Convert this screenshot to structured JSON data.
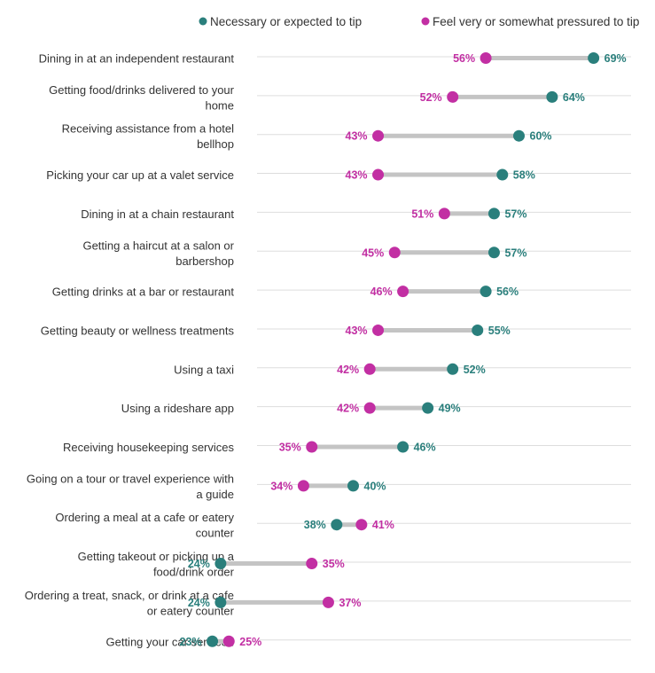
{
  "chart_data": {
    "type": "dumbbell",
    "series": [
      {
        "name": "Necessary or expected to tip",
        "color": "#2a7f7c",
        "values": [
          69,
          64,
          60,
          58,
          57,
          57,
          56,
          55,
          52,
          49,
          46,
          40,
          38,
          24,
          24,
          23
        ]
      },
      {
        "name": "Feel very or somewhat pressured to tip",
        "color": "#c22fa3",
        "values": [
          56,
          52,
          43,
          43,
          51,
          45,
          46,
          43,
          42,
          42,
          35,
          34,
          41,
          35,
          37,
          25
        ]
      }
    ],
    "categories": [
      [
        "Dining in at an independent restaurant"
      ],
      [
        "Getting food/drinks delivered to your",
        "home"
      ],
      [
        "Receiving assistance from a hotel",
        "bellhop"
      ],
      [
        "Picking your car up at a valet service"
      ],
      [
        "Dining in at a chain restaurant"
      ],
      [
        "Getting a haircut at a salon or",
        "barbershop"
      ],
      [
        "Getting drinks at a bar or restaurant"
      ],
      [
        "Getting beauty or wellness treatments"
      ],
      [
        "Using a taxi"
      ],
      [
        "Using a rideshare app"
      ],
      [
        "Receiving housekeeping services"
      ],
      [
        "Going on a tour or travel experience with",
        "a guide"
      ],
      [
        "Ordering a meal at a cafe or eatery",
        "counter"
      ],
      [
        "Getting takeout or picking up a",
        "food/drink order"
      ],
      [
        "Ordering a treat, snack, or drink at a cafe",
        "or eatery counter"
      ],
      [
        "Getting your car serviced"
      ]
    ],
    "value_suffix": "%",
    "connector_color": "#c4c4c4",
    "grid_color": "#dddddd",
    "legend_placement": "top",
    "grid": true
  }
}
